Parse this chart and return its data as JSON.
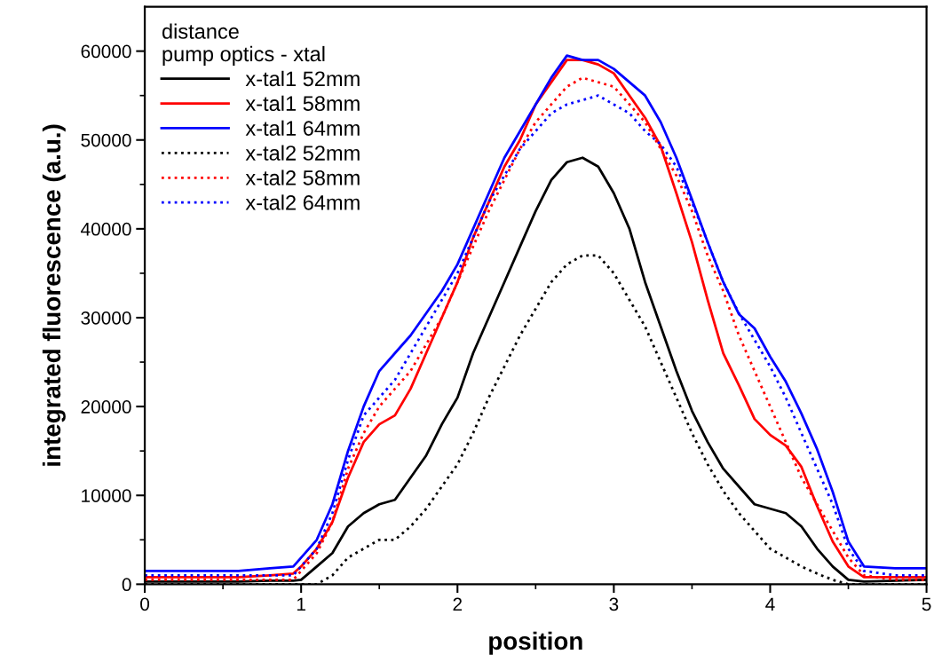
{
  "chart_data": {
    "type": "line",
    "xlabel": "position",
    "ylabel": "integrated fluorescence (a.u.)",
    "legend_title": "distance\npump optics - xtal",
    "x": [
      0,
      0.2,
      0.4,
      0.6,
      0.8,
      0.95,
      1.0,
      1.1,
      1.2,
      1.3,
      1.4,
      1.5,
      1.6,
      1.7,
      1.8,
      1.9,
      2.0,
      2.1,
      2.2,
      2.3,
      2.4,
      2.5,
      2.6,
      2.7,
      2.8,
      2.9,
      3.0,
      3.1,
      3.2,
      3.3,
      3.4,
      3.5,
      3.6,
      3.7,
      3.8,
      3.9,
      4.0,
      4.1,
      4.2,
      4.3,
      4.4,
      4.5,
      4.6,
      4.8,
      5.0
    ],
    "series": [
      {
        "name": "x-tal1 52mm",
        "color": "#000000",
        "line_style": "solid",
        "values": [
          300,
          300,
          300,
          300,
          400,
          400,
          500,
          2000,
          3500,
          6500,
          8000,
          9000,
          9500,
          12000,
          14500,
          18000,
          21000,
          26000,
          30000,
          34000,
          38000,
          42000,
          45500,
          47500,
          48000,
          47000,
          44000,
          40000,
          34000,
          29000,
          24000,
          19500,
          16000,
          13000,
          11000,
          9000,
          8500,
          8000,
          6500,
          4000,
          2000,
          500,
          300,
          400,
          500
        ]
      },
      {
        "name": "x-tal1 58mm",
        "color": "#ff0000",
        "line_style": "solid",
        "values": [
          800,
          800,
          800,
          800,
          1000,
          1200,
          2000,
          4000,
          7000,
          12000,
          16000,
          18000,
          19000,
          22000,
          26000,
          30000,
          34000,
          39000,
          43000,
          47000,
          50000,
          54000,
          56500,
          59000,
          59000,
          58500,
          57500,
          55000,
          52500,
          49300,
          44000,
          38500,
          32000,
          26000,
          22400,
          18600,
          16800,
          15600,
          13200,
          8800,
          4800,
          2000,
          800,
          800,
          800
        ]
      },
      {
        "name": "x-tal1 64mm",
        "color": "#0000ff",
        "line_style": "solid",
        "values": [
          1500,
          1500,
          1500,
          1500,
          1800,
          2000,
          3000,
          5000,
          9000,
          15000,
          20000,
          24000,
          26000,
          28000,
          30500,
          33000,
          36000,
          40000,
          44000,
          48000,
          51000,
          54000,
          57000,
          59500,
          59000,
          59000,
          58000,
          56500,
          55000,
          52000,
          48000,
          43300,
          38500,
          34000,
          30400,
          28800,
          25600,
          22800,
          19200,
          15200,
          10400,
          4800,
          2000,
          1800,
          1800
        ]
      },
      {
        "name": "x-tal2 52mm",
        "color": "#000000",
        "line_style": "dotted",
        "values": [
          0,
          0,
          0,
          0,
          0,
          0,
          0,
          0,
          1000,
          3000,
          4000,
          5000,
          5000,
          6500,
          8500,
          11000,
          13500,
          17000,
          21000,
          24500,
          28000,
          31000,
          34000,
          36000,
          37000,
          37000,
          35000,
          32000,
          29000,
          25000,
          21000,
          17000,
          13500,
          10500,
          8000,
          6000,
          4000,
          3000,
          2000,
          1200,
          500,
          0,
          0,
          0,
          0
        ]
      },
      {
        "name": "x-tal2 58mm",
        "color": "#ff0000",
        "line_style": "dotted",
        "values": [
          500,
          500,
          500,
          500,
          500,
          500,
          1500,
          3500,
          7000,
          13000,
          17000,
          20000,
          22000,
          24000,
          27000,
          30000,
          34000,
          38000,
          42000,
          45500,
          49000,
          52000,
          54000,
          56000,
          57000,
          56500,
          56000,
          54000,
          52000,
          49000,
          46000,
          42000,
          37000,
          33000,
          28000,
          24000,
          20000,
          16000,
          12000,
          9000,
          6000,
          3000,
          1000,
          500,
          500
        ]
      },
      {
        "name": "x-tal2 64mm",
        "color": "#0000ff",
        "line_style": "dotted",
        "values": [
          1000,
          1000,
          1000,
          1000,
          1000,
          1000,
          2000,
          4000,
          8000,
          14000,
          19000,
          21000,
          23000,
          26000,
          29000,
          32000,
          35000,
          39000,
          43000,
          46000,
          49000,
          51000,
          53000,
          54000,
          54500,
          55000,
          54000,
          53000,
          51000,
          49500,
          47000,
          43000,
          38500,
          34000,
          30500,
          27500,
          24500,
          21000,
          17000,
          13000,
          9000,
          4000,
          1500,
          1000,
          1000
        ]
      }
    ],
    "xlim": [
      0,
      5
    ],
    "xticks": [
      0,
      1,
      2,
      3,
      4,
      5
    ],
    "ylim": [
      0,
      65000
    ],
    "yticks": [
      0,
      10000,
      20000,
      30000,
      40000,
      50000,
      60000
    ],
    "grid": false,
    "legend": "top left",
    "marker": "none"
  }
}
